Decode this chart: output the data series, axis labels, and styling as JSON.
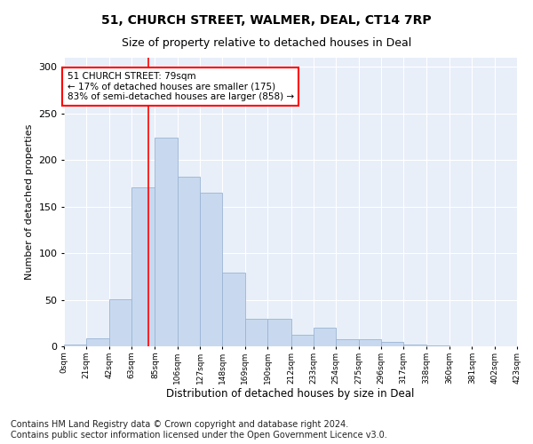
{
  "title_line1": "51, CHURCH STREET, WALMER, DEAL, CT14 7RP",
  "title_line2": "Size of property relative to detached houses in Deal",
  "xlabel": "Distribution of detached houses by size in Deal",
  "ylabel": "Number of detached properties",
  "bar_color": "#c8d9ef",
  "bar_edge_color": "#9ab4d4",
  "background_color": "#e8eff9",
  "property_line_x": 79,
  "annotation_text": "51 CHURCH STREET: 79sqm\n← 17% of detached houses are smaller (175)\n83% of semi-detached houses are larger (858) →",
  "annotation_box_color": "white",
  "annotation_box_edge": "red",
  "vline_color": "red",
  "bin_edges": [
    0,
    21,
    42,
    63,
    85,
    106,
    127,
    148,
    169,
    190,
    212,
    233,
    254,
    275,
    296,
    317,
    338,
    360,
    381,
    402,
    423
  ],
  "bar_heights": [
    2,
    9,
    51,
    171,
    224,
    182,
    165,
    79,
    30,
    30,
    12,
    20,
    8,
    8,
    5,
    2,
    1,
    0,
    0,
    0
  ],
  "tick_labels": [
    "0sqm",
    "21sqm",
    "42sqm",
    "63sqm",
    "85sqm",
    "106sqm",
    "127sqm",
    "148sqm",
    "169sqm",
    "190sqm",
    "212sqm",
    "233sqm",
    "254sqm",
    "275sqm",
    "296sqm",
    "317sqm",
    "338sqm",
    "360sqm",
    "381sqm",
    "402sqm",
    "423sqm"
  ],
  "ylim": [
    0,
    310
  ],
  "yticks": [
    0,
    50,
    100,
    150,
    200,
    250,
    300
  ],
  "footer_text": "Contains HM Land Registry data © Crown copyright and database right 2024.\nContains public sector information licensed under the Open Government Licence v3.0.",
  "title_fontsize": 10,
  "subtitle_fontsize": 9,
  "footer_fontsize": 7,
  "figsize": [
    6.0,
    5.0
  ],
  "dpi": 100
}
